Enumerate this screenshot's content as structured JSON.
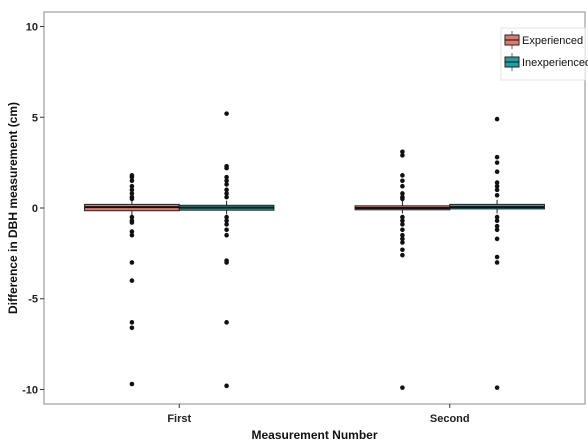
{
  "chart_data": {
    "type": "box",
    "title": "",
    "xlabel": "Measurement Number",
    "ylabel": "Difference in DBH measurement (cm)",
    "ylim": [
      -10.8,
      10.8
    ],
    "yticks": [
      -10,
      -5,
      0,
      5,
      10
    ],
    "ytick_labels": [
      "-10",
      "-5",
      "0",
      "5",
      "10"
    ],
    "categories": [
      "First",
      "Second"
    ],
    "grid": false,
    "legend_position": "top-right",
    "series": [
      {
        "name": "Experienced",
        "color": "#e07a6e",
        "boxes": [
          {
            "category": "First",
            "q1": -0.15,
            "median": 0.05,
            "q3": 0.2,
            "whisker_low": -0.4,
            "whisker_high": 0.45,
            "outliers": [
              1.8,
              1.7,
              1.5,
              1.2,
              1.0,
              0.8,
              0.6,
              0.5,
              -0.5,
              -0.7,
              -0.8,
              -1.3,
              -1.5,
              -3.0,
              -4.0,
              -6.3,
              -6.6,
              -9.7
            ]
          },
          {
            "category": "Second",
            "q1": -0.1,
            "median": 0.0,
            "q3": 0.12,
            "whisker_low": -0.3,
            "whisker_high": 0.4,
            "outliers": [
              3.1,
              2.9,
              1.8,
              1.5,
              1.2,
              0.8,
              0.6,
              0.5,
              -0.5,
              -0.7,
              -0.9,
              -1.2,
              -1.5,
              -1.7,
              -1.9,
              -2.3,
              -2.6,
              -9.9
            ]
          }
        ]
      },
      {
        "name": "Inexperienced",
        "color": "#20a0a0",
        "boxes": [
          {
            "category": "First",
            "q1": -0.12,
            "median": 0.02,
            "q3": 0.15,
            "whisker_low": -0.35,
            "whisker_high": 0.4,
            "outliers": [
              5.2,
              2.3,
              2.2,
              1.7,
              1.5,
              1.3,
              1.0,
              0.8,
              0.6,
              -0.5,
              -0.7,
              -0.9,
              -1.2,
              -1.5,
              -2.9,
              -3.0,
              -6.3,
              -9.8
            ]
          },
          {
            "category": "Second",
            "q1": -0.05,
            "median": 0.05,
            "q3": 0.2,
            "whisker_low": -0.3,
            "whisker_high": 0.45,
            "outliers": [
              4.9,
              2.8,
              2.5,
              2.0,
              1.4,
              1.2,
              1.0,
              0.7,
              -0.5,
              -0.7,
              -1.0,
              -1.2,
              -1.7,
              -2.7,
              -3.0,
              -9.9
            ]
          }
        ]
      }
    ]
  }
}
